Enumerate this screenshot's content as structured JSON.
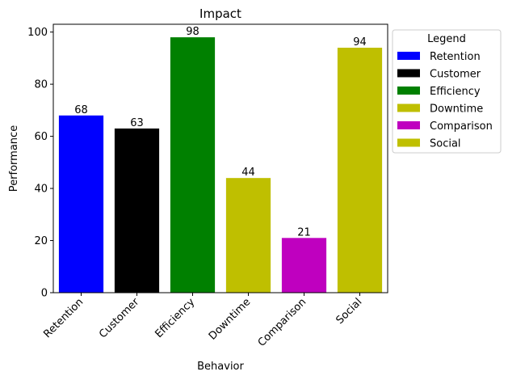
{
  "chart_data": {
    "type": "bar",
    "title": "Impact",
    "xlabel": "Behavior",
    "ylabel": "Performance",
    "categories": [
      "Retention",
      "Customer",
      "Efficiency",
      "Downtime",
      "Comparison",
      "Social"
    ],
    "values": [
      68,
      63,
      98,
      44,
      21,
      94
    ],
    "colors": [
      "#0000ff",
      "#000000",
      "#008000",
      "#bfbf00",
      "#bf00bf",
      "#bfbf00"
    ],
    "ylim": [
      0,
      103
    ],
    "yticks": [
      0,
      20,
      40,
      60,
      80,
      100
    ],
    "grid": false,
    "legend": {
      "title": "Legend",
      "placement": "outside-top-right",
      "entries": [
        "Retention",
        "Customer",
        "Efficiency",
        "Downtime",
        "Comparison",
        "Social"
      ]
    }
  }
}
